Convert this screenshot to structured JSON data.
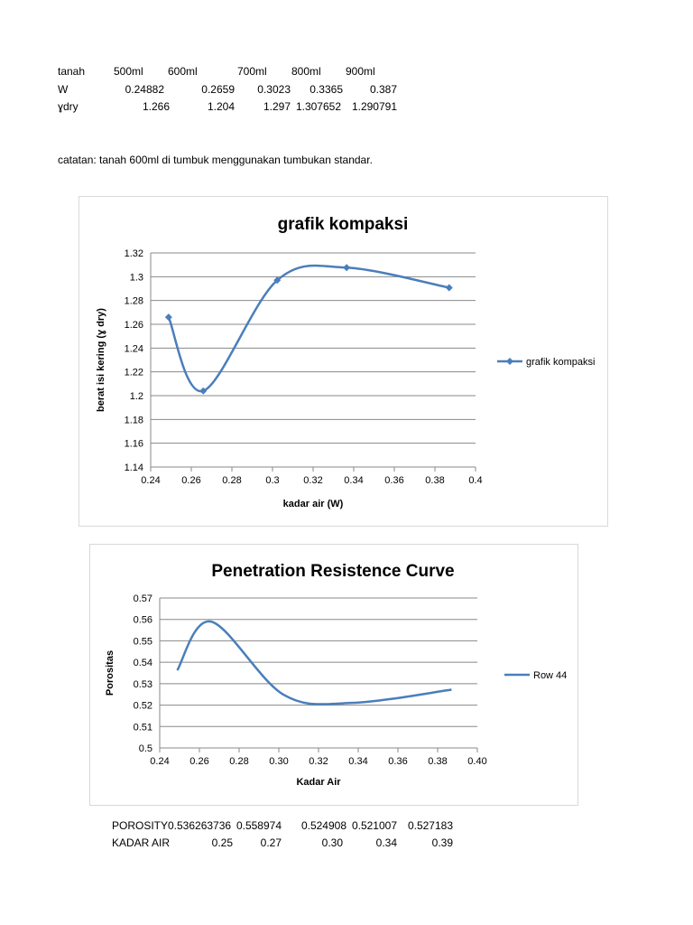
{
  "top_table": {
    "header": [
      "tanah",
      "500ml",
      "600ml",
      "700ml",
      "800ml",
      "900ml"
    ],
    "w_row": [
      "W",
      "0.24882",
      "0.2659",
      "0.3023",
      "0.3365",
      "0.387"
    ],
    "ydry_row": [
      "ɣdry",
      "1.266",
      "1.204",
      "1.297",
      "1.307652",
      "1.290791"
    ]
  },
  "note": "catatan: tanah 600ml di tumbuk menggunakan tumbukan standar.",
  "chart_data": [
    {
      "type": "line",
      "title": "grafik kompaksi",
      "xlabel": "kadar air (W)",
      "ylabel": "berat isi kering (ɣ dry)",
      "xlim": [
        0.24,
        0.4
      ],
      "ylim": [
        1.14,
        1.32
      ],
      "xticks": [
        "0.24",
        "0.26",
        "0.28",
        "0.3",
        "0.32",
        "0.34",
        "0.36",
        "0.38",
        "0.4"
      ],
      "yticks": [
        "1.14",
        "1.16",
        "1.18",
        "1.2",
        "1.22",
        "1.24",
        "1.26",
        "1.28",
        "1.3",
        "1.32"
      ],
      "grid": true,
      "smooth": true,
      "markers": true,
      "legend": "right",
      "series": [
        {
          "name": "grafik kompaksi",
          "color": "#4a7ebb",
          "x": [
            0.24882,
            0.2659,
            0.3023,
            0.3365,
            0.387
          ],
          "y": [
            1.266,
            1.204,
            1.297,
            1.307652,
            1.290791
          ]
        }
      ]
    },
    {
      "type": "line",
      "title": "Penetration Resistence Curve",
      "xlabel": "Kadar Air",
      "ylabel": "Porositas",
      "xlim": [
        0.24,
        0.4
      ],
      "ylim": [
        0.5,
        0.57
      ],
      "xticks": [
        "0.24",
        "0.26",
        "0.28",
        "0.30",
        "0.32",
        "0.34",
        "0.36",
        "0.38",
        "0.40"
      ],
      "yticks": [
        "0.5",
        "0.51",
        "0.52",
        "0.53",
        "0.54",
        "0.55",
        "0.56",
        "0.57"
      ],
      "grid": true,
      "smooth": true,
      "markers": false,
      "legend": "right",
      "series": [
        {
          "name": "Row 44",
          "color": "#4a7ebb",
          "x": [
            0.24882,
            0.2659,
            0.3023,
            0.3365,
            0.387
          ],
          "y": [
            0.536263736,
            0.558974,
            0.524908,
            0.521007,
            0.527183
          ]
        }
      ]
    }
  ],
  "bottom_table": {
    "porosity_row": [
      "POROSITY",
      "0.536263736",
      "0.558974",
      "0.524908",
      "0.521007",
      "0.527183"
    ],
    "kadar_row": [
      "KADAR AIR",
      "0.25",
      "0.27",
      "0.30",
      "0.34",
      "0.39"
    ]
  }
}
